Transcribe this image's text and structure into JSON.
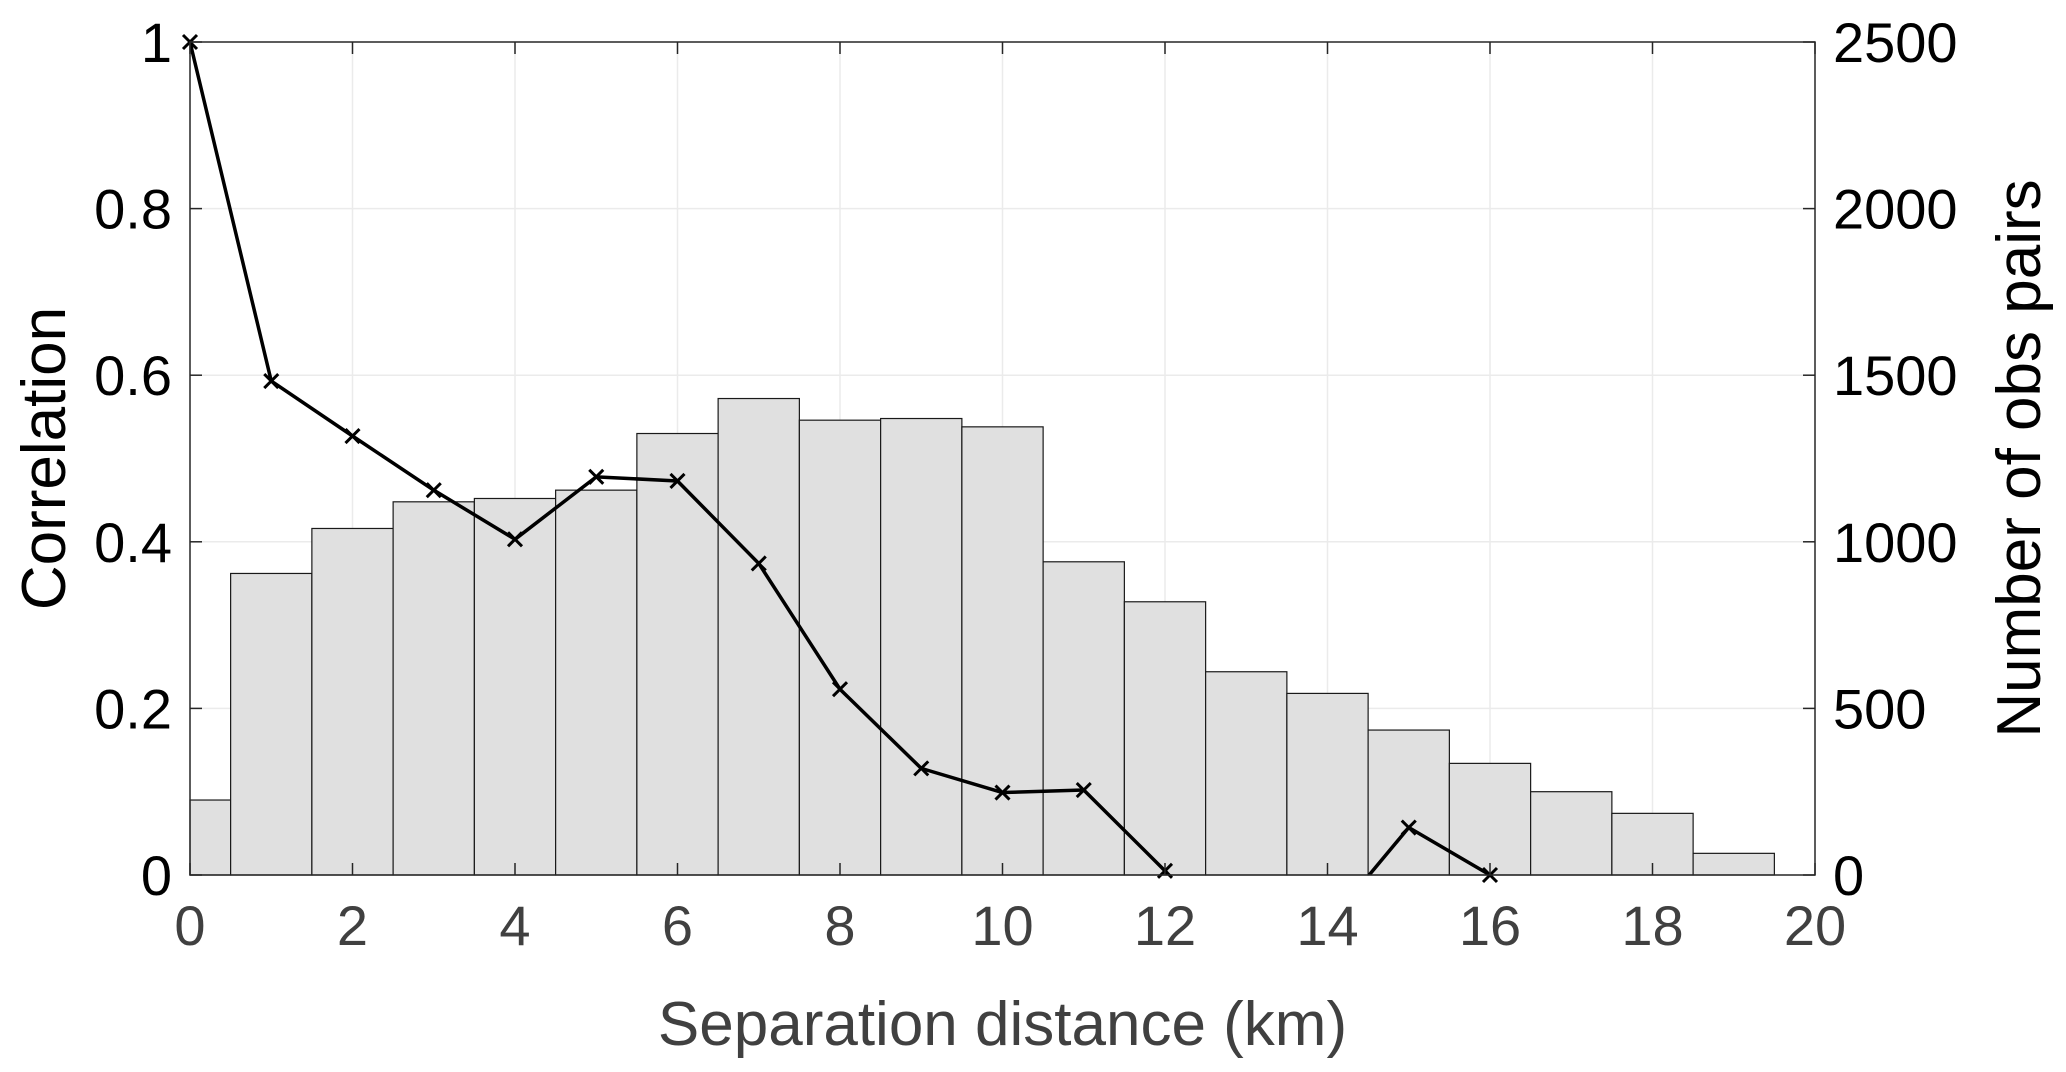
{
  "chart_data": {
    "type": "bar",
    "xlabel": "Separation distance (km)",
    "ylabel_left": "Correlation",
    "ylabel_right": "Number of obs pairs",
    "xlim": [
      0,
      20
    ],
    "ylim_left": [
      0,
      1
    ],
    "ylim_right": [
      0,
      2500
    ],
    "grid": true,
    "x_ticks": [
      "0",
      "2",
      "4",
      "6",
      "8",
      "10",
      "12",
      "14",
      "16",
      "18",
      "20"
    ],
    "y_ticks_left": [
      "0",
      "0.2",
      "0.4",
      "0.6",
      "0.8",
      "1"
    ],
    "y_ticks_right": [
      "0",
      "500",
      "1000",
      "1500",
      "2000",
      "2500"
    ],
    "bins": {
      "centers": [
        0,
        1,
        2,
        3,
        4,
        5,
        6,
        7,
        8,
        9,
        10,
        11,
        12,
        13,
        14,
        15,
        16,
        17,
        18,
        19
      ],
      "width": 1,
      "counts": [
        225,
        905,
        1040,
        1120,
        1130,
        1155,
        1325,
        1430,
        1365,
        1370,
        1345,
        940,
        820,
        610,
        545,
        435,
        335,
        250,
        185,
        65
      ],
      "axis": "right",
      "color": "#e0e0e0"
    },
    "series": [
      {
        "axis": "left",
        "marker": "x",
        "color": "#000000",
        "x": [
          0,
          1,
          2,
          3,
          4,
          5,
          6,
          7,
          8,
          9,
          10,
          11,
          12,
          13,
          14,
          15,
          16
        ],
        "y": [
          1.0,
          0.593,
          0.527,
          0.462,
          0.403,
          0.478,
          0.473,
          0.374,
          0.223,
          0.128,
          0.099,
          0.102,
          0.005,
          -0.1,
          -0.06,
          0.057,
          0.0
        ]
      }
    ]
  }
}
